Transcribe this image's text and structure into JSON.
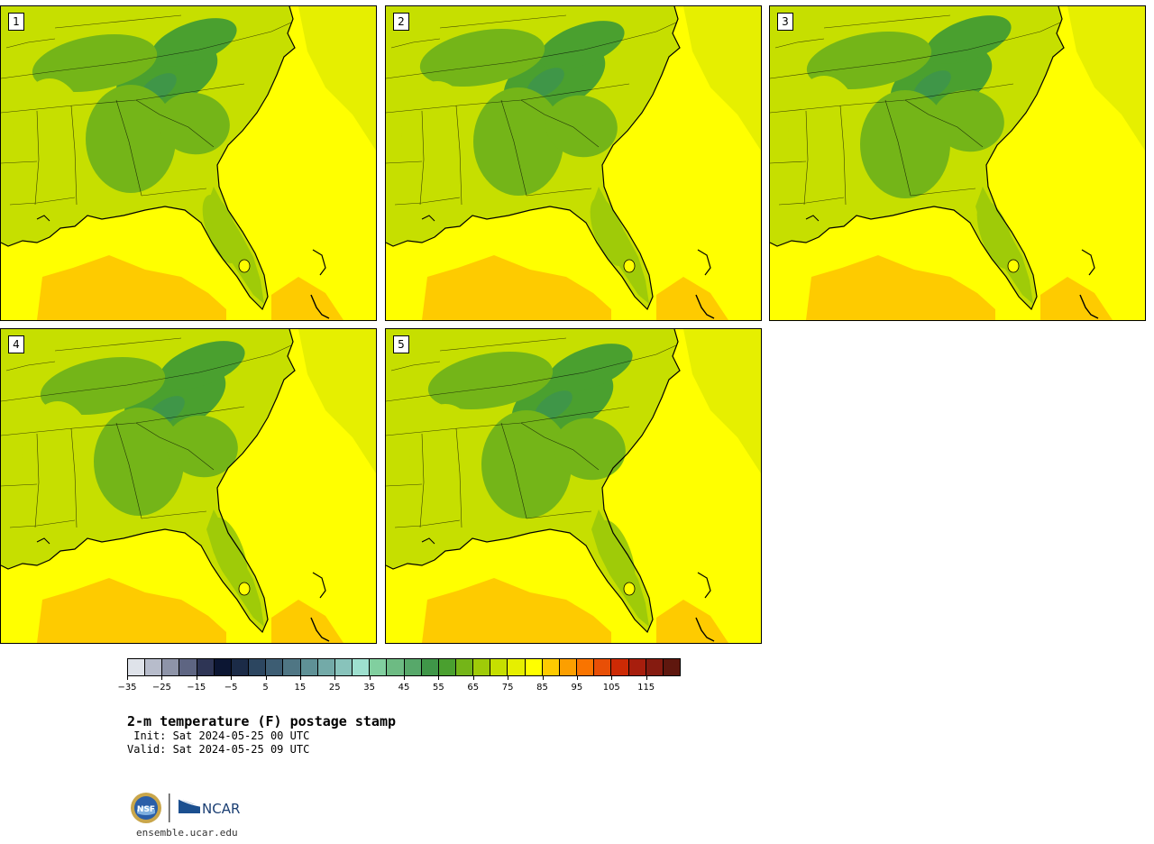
{
  "panels": [
    {
      "label": "1"
    },
    {
      "label": "2"
    },
    {
      "label": "3"
    },
    {
      "label": "4"
    },
    {
      "label": "5"
    }
  ],
  "colorbar": {
    "colors": [
      "#dfe3ea",
      "#b7bccb",
      "#8e94a8",
      "#5e6582",
      "#2e3555",
      "#0c1633",
      "#1b2b47",
      "#2c4660",
      "#3d5d73",
      "#4f7684",
      "#5f9196",
      "#73aaa8",
      "#88c3bb",
      "#9ee0cf",
      "#81cf9f",
      "#6dbb83",
      "#57a86a",
      "#3f9648",
      "#4aa02f",
      "#74b518",
      "#9fcb08",
      "#c6df00",
      "#e6ef00",
      "#ffff00",
      "#fecb00",
      "#fc9f00",
      "#f97400",
      "#e84f06",
      "#cd2a05",
      "#a71e0d",
      "#851b10",
      "#5f170e"
    ],
    "tick_labels": [
      "−35",
      "−25",
      "−15",
      "−5",
      "5",
      "15",
      "25",
      "35",
      "45",
      "55",
      "65",
      "75",
      "85",
      "95",
      "105",
      "115"
    ]
  },
  "title": "2-m temperature (F) postage stamp",
  "init": " Init: Sat 2024-05-25 00 UTC",
  "valid": "Valid: Sat 2024-05-25 09 UTC",
  "footer": {
    "logo_nsf": "NSF",
    "logo_ncar": "NCAR",
    "site": "ensemble.ucar.edu"
  }
}
